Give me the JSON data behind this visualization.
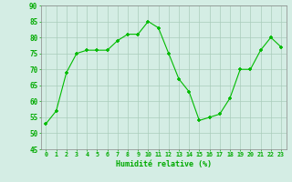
{
  "x": [
    0,
    1,
    2,
    3,
    4,
    5,
    6,
    7,
    8,
    9,
    10,
    11,
    12,
    13,
    14,
    15,
    16,
    17,
    18,
    19,
    20,
    21,
    22,
    23
  ],
  "y": [
    53,
    57,
    69,
    75,
    76,
    76,
    76,
    79,
    81,
    81,
    85,
    83,
    75,
    67,
    63,
    54,
    55,
    56,
    61,
    70,
    70,
    76,
    80,
    77
  ],
  "line_color": "#00bb00",
  "marker_color": "#00bb00",
  "bg_color": "#d4ede4",
  "grid_color": "#aaccbb",
  "xlabel": "Humidité relative (%)",
  "xlabel_color": "#00aa00",
  "ylim": [
    45,
    90
  ],
  "yticks": [
    45,
    50,
    55,
    60,
    65,
    70,
    75,
    80,
    85,
    90
  ],
  "xtick_labels": [
    "0",
    "1",
    "2",
    "3",
    "4",
    "5",
    "6",
    "7",
    "8",
    "9",
    "10",
    "11",
    "12",
    "13",
    "14",
    "15",
    "16",
    "17",
    "18",
    "19",
    "20",
    "21",
    "22",
    "23"
  ],
  "tick_color": "#00aa00",
  "spine_color": "#888888"
}
